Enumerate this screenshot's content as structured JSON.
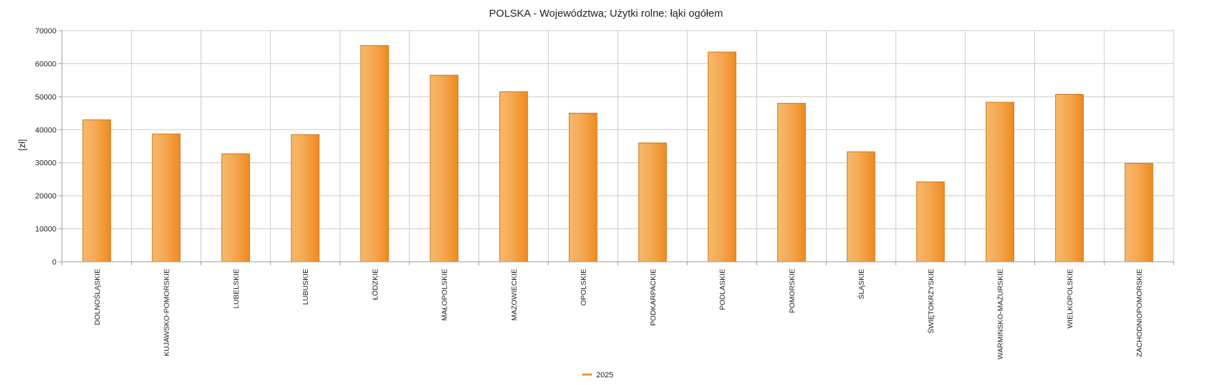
{
  "chart_data": {
    "type": "bar",
    "title": "POLSKA - Województwa; Użytki rolne: łąki ogółem",
    "xlabel": "",
    "ylabel": "[zł]",
    "ylim": [
      0,
      70000
    ],
    "yticks": [
      0,
      10000,
      20000,
      30000,
      40000,
      50000,
      60000,
      70000
    ],
    "grid": true,
    "legend_position": "bottom-center",
    "categories": [
      "DOLNOŚLĄSKIE",
      "KUJAWSKO-POMORSKIE",
      "LUBELSKIE",
      "LUBUSKIE",
      "ŁÓDZKIE",
      "MAŁOPOLSKIE",
      "MAZOWIECKIE",
      "OPOLSKIE",
      "PODKARPACKIE",
      "PODLASKIE",
      "POMORSKIE",
      "ŚLĄSKIE",
      "ŚWIĘTOKRZYSKIE",
      "WARMIŃSKO-MAZURSKIE",
      "WIELKOPOLSKIE",
      "ZACHODNIOPOMORSKIE"
    ],
    "series": [
      {
        "name": "2025",
        "color": "#f0922c",
        "values": [
          43000,
          38700,
          32700,
          38500,
          65500,
          56500,
          51500,
          45000,
          36000,
          63500,
          48000,
          33300,
          24200,
          48300,
          50700,
          29800
        ]
      }
    ]
  }
}
